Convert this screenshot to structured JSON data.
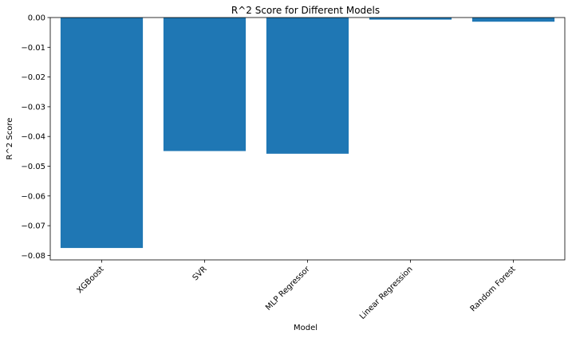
{
  "chart_data": {
    "type": "bar",
    "title": "R^2 Score for Different Models",
    "xlabel": "Model",
    "ylabel": "R^2 Score",
    "categories": [
      "XGBoost",
      "SVR",
      "MLP Regressor",
      "Linear Regression",
      "Random Forest"
    ],
    "values": [
      -0.0775,
      -0.0449,
      -0.0458,
      -0.0007,
      -0.0014
    ],
    "ylim": [
      -0.0815,
      0.0
    ],
    "yticks": [
      0.0,
      -0.01,
      -0.02,
      -0.03,
      -0.04,
      -0.05,
      -0.06,
      -0.07,
      -0.08
    ],
    "ytick_labels": [
      "0.00",
      "−0.01",
      "−0.02",
      "−0.03",
      "−0.04",
      "−0.05",
      "−0.06",
      "−0.07",
      "−0.08"
    ],
    "bar_color": "#1f77b4",
    "grid": false,
    "legend": "none"
  }
}
